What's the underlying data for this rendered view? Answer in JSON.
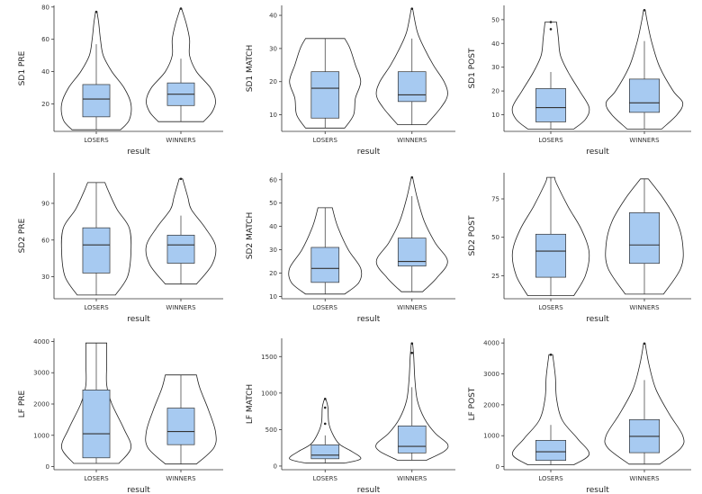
{
  "chart_data": [
    {
      "type": "violin+box",
      "ylabel": "SD1 PRE",
      "xlabel": "result",
      "categories": [
        "LOSERS",
        "WINNERS"
      ],
      "ylim": [
        3,
        81
      ],
      "yticks": [
        20,
        40,
        60,
        80
      ],
      "groups": [
        {
          "name": "LOSERS",
          "min": 4,
          "q1": 12,
          "median": 23,
          "q3": 32,
          "max": 57,
          "whisker_high": 57,
          "outliers": [
            77
          ],
          "violin_width": [
            [
              4,
              0.7
            ],
            [
              10,
              0.95
            ],
            [
              20,
              1.0
            ],
            [
              30,
              0.8
            ],
            [
              40,
              0.45
            ],
            [
              50,
              0.2
            ],
            [
              60,
              0.12
            ],
            [
              70,
              0.07
            ],
            [
              77,
              0.02
            ]
          ]
        },
        {
          "name": "WINNERS",
          "min": 9,
          "q1": 19,
          "median": 26,
          "q3": 33,
          "max": 48,
          "whisker_high": 48,
          "outliers": [
            79
          ],
          "violin_width": [
            [
              9,
              0.65
            ],
            [
              15,
              0.9
            ],
            [
              22,
              1.0
            ],
            [
              30,
              0.85
            ],
            [
              40,
              0.45
            ],
            [
              50,
              0.25
            ],
            [
              60,
              0.25
            ],
            [
              70,
              0.15
            ],
            [
              79,
              0.02
            ]
          ]
        }
      ]
    },
    {
      "type": "violin+box",
      "ylabel": "SD1 MATCH",
      "xlabel": "result",
      "categories": [
        "LOSERS",
        "WINNERS"
      ],
      "ylim": [
        5,
        43
      ],
      "yticks": [
        10,
        20,
        30,
        40
      ],
      "groups": [
        {
          "name": "LOSERS",
          "min": 6,
          "q1": 9,
          "median": 18,
          "q3": 23,
          "max": 33,
          "whisker_high": 33,
          "outliers": [],
          "violin_width": [
            [
              6,
              0.55
            ],
            [
              10,
              0.8
            ],
            [
              15,
              0.85
            ],
            [
              20,
              1.0
            ],
            [
              25,
              0.85
            ],
            [
              30,
              0.7
            ],
            [
              33,
              0.55
            ]
          ]
        },
        {
          "name": "WINNERS",
          "min": 7,
          "q1": 14,
          "median": 16,
          "q3": 23,
          "max": 33,
          "whisker_high": 33,
          "outliers": [
            42
          ],
          "violin_width": [
            [
              7,
              0.4
            ],
            [
              12,
              0.8
            ],
            [
              16,
              1.0
            ],
            [
              20,
              0.9
            ],
            [
              25,
              0.6
            ],
            [
              30,
              0.35
            ],
            [
              35,
              0.15
            ],
            [
              42,
              0.02
            ]
          ]
        }
      ]
    },
    {
      "type": "violin+box",
      "ylabel": "SD1 POST",
      "xlabel": "result",
      "categories": [
        "LOSERS",
        "WINNERS"
      ],
      "ylim": [
        3,
        56
      ],
      "yticks": [
        10,
        20,
        30,
        40,
        50
      ],
      "groups": [
        {
          "name": "LOSERS",
          "min": 4,
          "q1": 7,
          "median": 13,
          "q3": 21,
          "max": 28,
          "whisker_high": 28,
          "outliers": [
            46,
            49
          ],
          "violin_width": [
            [
              4,
              0.6
            ],
            [
              8,
              0.9
            ],
            [
              13,
              1.0
            ],
            [
              20,
              0.75
            ],
            [
              28,
              0.45
            ],
            [
              35,
              0.25
            ],
            [
              42,
              0.2
            ],
            [
              49,
              0.15
            ]
          ]
        },
        {
          "name": "WINNERS",
          "min": 4,
          "q1": 11,
          "median": 15,
          "q3": 25,
          "max": 41,
          "whisker_high": 41,
          "outliers": [
            54
          ],
          "violin_width": [
            [
              4,
              0.45
            ],
            [
              10,
              0.85
            ],
            [
              15,
              1.0
            ],
            [
              20,
              0.75
            ],
            [
              30,
              0.4
            ],
            [
              40,
              0.2
            ],
            [
              47,
              0.1
            ],
            [
              54,
              0.02
            ]
          ]
        }
      ]
    },
    {
      "type": "violin+box",
      "ylabel": "SD2 PRE",
      "xlabel": "result",
      "categories": [
        "LOSERS",
        "WINNERS"
      ],
      "ylim": [
        12,
        115
      ],
      "yticks": [
        30,
        60,
        90
      ],
      "groups": [
        {
          "name": "LOSERS",
          "min": 15,
          "q1": 33,
          "median": 56,
          "q3": 70,
          "max": 107,
          "whisker_high": 107,
          "outliers": [],
          "violin_width": [
            [
              15,
              0.55
            ],
            [
              30,
              0.9
            ],
            [
              50,
              1.0
            ],
            [
              70,
              0.95
            ],
            [
              85,
              0.6
            ],
            [
              100,
              0.35
            ],
            [
              107,
              0.25
            ]
          ]
        },
        {
          "name": "WINNERS",
          "min": 24,
          "q1": 41,
          "median": 56,
          "q3": 64,
          "max": 80,
          "whisker_high": 80,
          "outliers": [
            110
          ],
          "violin_width": [
            [
              24,
              0.45
            ],
            [
              40,
              0.9
            ],
            [
              55,
              1.0
            ],
            [
              70,
              0.7
            ],
            [
              85,
              0.3
            ],
            [
              95,
              0.2
            ],
            [
              110,
              0.05
            ]
          ]
        }
      ]
    },
    {
      "type": "violin+box",
      "ylabel": "SD2 MATCH",
      "xlabel": "result",
      "categories": [
        "LOSERS",
        "WINNERS"
      ],
      "ylim": [
        9,
        63
      ],
      "yticks": [
        10,
        20,
        30,
        40,
        50,
        60
      ],
      "groups": [
        {
          "name": "LOSERS",
          "min": 11,
          "q1": 16,
          "median": 22,
          "q3": 31,
          "max": 48,
          "whisker_high": 48,
          "outliers": [],
          "violin_width": [
            [
              11,
              0.55
            ],
            [
              16,
              0.95
            ],
            [
              22,
              1.0
            ],
            [
              30,
              0.65
            ],
            [
              40,
              0.35
            ],
            [
              48,
              0.2
            ]
          ]
        },
        {
          "name": "WINNERS",
          "min": 12,
          "q1": 23,
          "median": 25,
          "q3": 35,
          "max": 53,
          "whisker_high": 53,
          "outliers": [
            61
          ],
          "violin_width": [
            [
              12,
              0.3
            ],
            [
              18,
              0.7
            ],
            [
              25,
              1.0
            ],
            [
              33,
              0.65
            ],
            [
              42,
              0.35
            ],
            [
              52,
              0.15
            ],
            [
              61,
              0.02
            ]
          ]
        }
      ]
    },
    {
      "type": "violin+box",
      "ylabel": "SD2 POST",
      "xlabel": "result",
      "categories": [
        "LOSERS",
        "WINNERS"
      ],
      "ylim": [
        10,
        92
      ],
      "yticks": [
        25,
        50,
        75
      ],
      "groups": [
        {
          "name": "LOSERS",
          "min": 12,
          "q1": 24,
          "median": 41,
          "q3": 52,
          "max": 89,
          "whisker_high": 89,
          "outliers": [],
          "violin_width": [
            [
              12,
              0.6
            ],
            [
              25,
              0.9
            ],
            [
              40,
              1.0
            ],
            [
              55,
              0.8
            ],
            [
              70,
              0.45
            ],
            [
              85,
              0.15
            ],
            [
              89,
              0.1
            ]
          ]
        },
        {
          "name": "WINNERS",
          "min": 13,
          "q1": 33,
          "median": 45,
          "q3": 66,
          "max": 88,
          "whisker_high": 88,
          "outliers": [],
          "violin_width": [
            [
              13,
              0.5
            ],
            [
              30,
              0.95
            ],
            [
              45,
              1.0
            ],
            [
              60,
              0.85
            ],
            [
              75,
              0.5
            ],
            [
              88,
              0.1
            ]
          ]
        }
      ]
    },
    {
      "type": "violin+box",
      "ylabel": "LF PRE",
      "xlabel": "result",
      "categories": [
        "LOSERS",
        "WINNERS"
      ],
      "ylim": [
        -100,
        4100
      ],
      "yticks": [
        0,
        1000,
        2000,
        3000,
        4000
      ],
      "groups": [
        {
          "name": "LOSERS",
          "min": 100,
          "q1": 280,
          "median": 1050,
          "q3": 2450,
          "max": 3950,
          "whisker_high": 3950,
          "outliers": [],
          "violin_width": [
            [
              100,
              0.65
            ],
            [
              600,
              1.0
            ],
            [
              1200,
              0.8
            ],
            [
              2000,
              0.45
            ],
            [
              2600,
              0.3
            ],
            [
              3300,
              0.3
            ],
            [
              3950,
              0.3
            ]
          ]
        },
        {
          "name": "WINNERS",
          "min": 80,
          "q1": 700,
          "median": 1120,
          "q3": 1870,
          "max": 2930,
          "whisker_high": 2930,
          "outliers": [],
          "violin_width": [
            [
              80,
              0.45
            ],
            [
              600,
              0.95
            ],
            [
              1100,
              1.0
            ],
            [
              1800,
              0.8
            ],
            [
              2500,
              0.55
            ],
            [
              2930,
              0.45
            ]
          ]
        }
      ]
    },
    {
      "type": "violin+box",
      "ylabel": "LF MATCH",
      "xlabel": "result",
      "categories": [
        "LOSERS",
        "WINNERS"
      ],
      "ylim": [
        -50,
        1750
      ],
      "yticks": [
        0,
        500,
        1000,
        1500
      ],
      "groups": [
        {
          "name": "LOSERS",
          "min": 40,
          "q1": 100,
          "median": 150,
          "q3": 290,
          "max": 420,
          "whisker_high": 420,
          "outliers": [
            580,
            800,
            920
          ],
          "violin_width": [
            [
              40,
              0.55
            ],
            [
              100,
              1.0
            ],
            [
              200,
              0.75
            ],
            [
              300,
              0.4
            ],
            [
              450,
              0.2
            ],
            [
              600,
              0.1
            ],
            [
              800,
              0.08
            ],
            [
              920,
              0.02
            ]
          ]
        },
        {
          "name": "WINNERS",
          "min": 80,
          "q1": 180,
          "median": 270,
          "q3": 550,
          "max": 1080,
          "whisker_high": 1080,
          "outliers": [
            1550,
            1680
          ],
          "violin_width": [
            [
              80,
              0.4
            ],
            [
              200,
              0.9
            ],
            [
              300,
              1.0
            ],
            [
              450,
              0.65
            ],
            [
              650,
              0.35
            ],
            [
              900,
              0.15
            ],
            [
              1200,
              0.08
            ],
            [
              1500,
              0.05
            ],
            [
              1680,
              0.02
            ]
          ]
        }
      ]
    },
    {
      "type": "violin+box",
      "ylabel": "LF POST",
      "xlabel": "result",
      "categories": [
        "LOSERS",
        "WINNERS"
      ],
      "ylim": [
        -100,
        4150
      ],
      "yticks": [
        0,
        1000,
        2000,
        3000,
        4000
      ],
      "groups": [
        {
          "name": "LOSERS",
          "min": 60,
          "q1": 200,
          "median": 480,
          "q3": 850,
          "max": 1350,
          "whisker_high": 1350,
          "outliers": [
            3620
          ],
          "violin_width": [
            [
              60,
              0.6
            ],
            [
              400,
              1.0
            ],
            [
              900,
              0.7
            ],
            [
              1500,
              0.3
            ],
            [
              2200,
              0.15
            ],
            [
              2900,
              0.12
            ],
            [
              3620,
              0.05
            ]
          ]
        },
        {
          "name": "WINNERS",
          "min": 80,
          "q1": 450,
          "median": 980,
          "q3": 1520,
          "max": 2800,
          "whisker_high": 2800,
          "outliers": [
            3980
          ],
          "violin_width": [
            [
              80,
              0.4
            ],
            [
              600,
              0.95
            ],
            [
              1000,
              1.0
            ],
            [
              1700,
              0.65
            ],
            [
              2500,
              0.3
            ],
            [
              3300,
              0.12
            ],
            [
              3980,
              0.02
            ]
          ]
        }
      ]
    }
  ]
}
